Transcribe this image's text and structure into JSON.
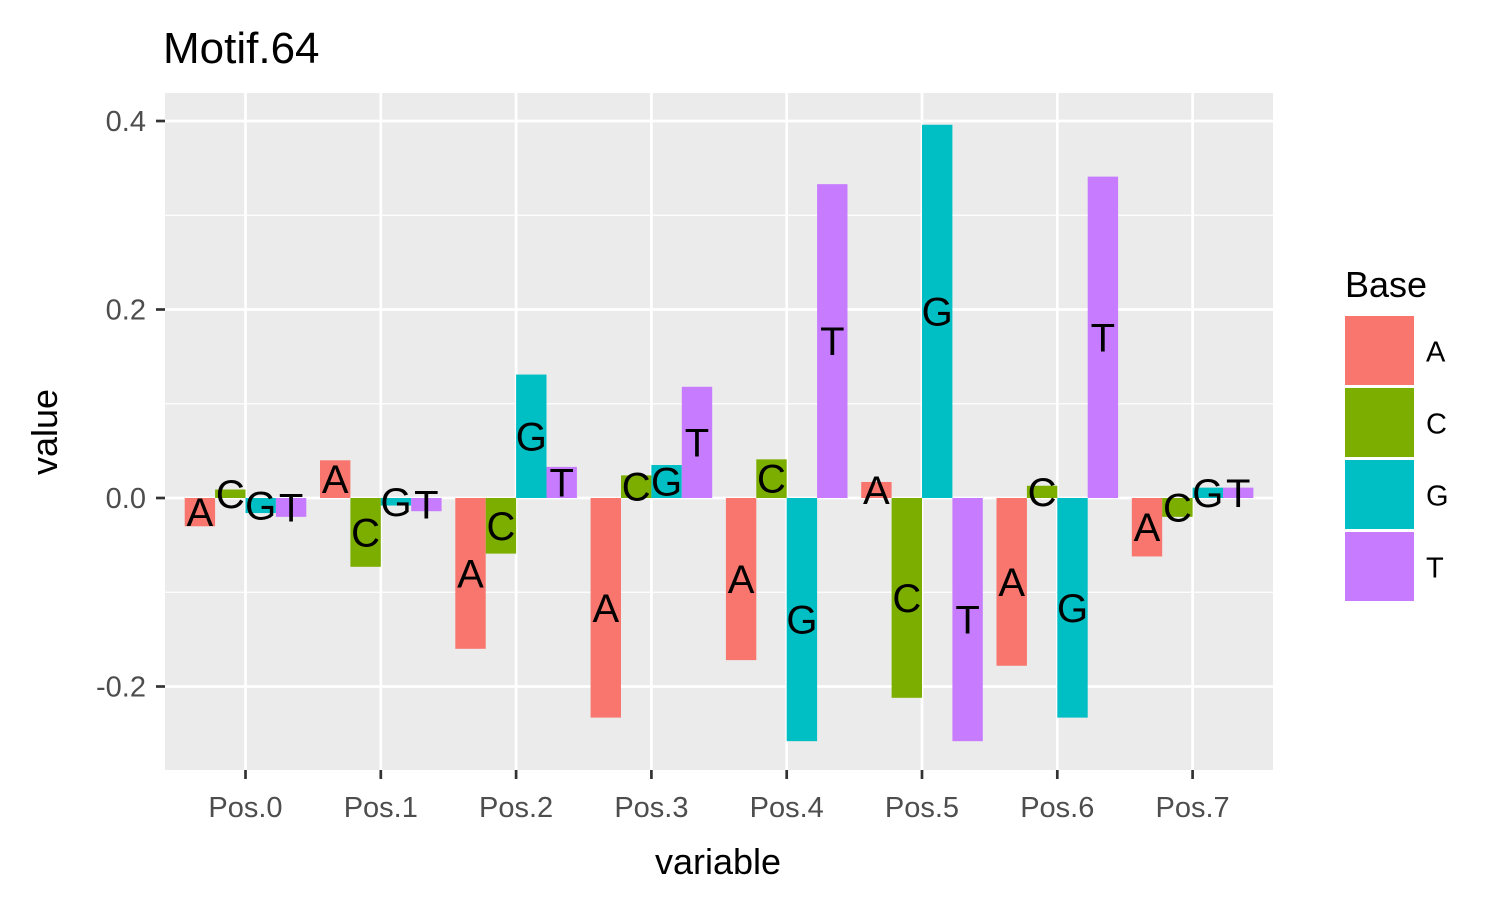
{
  "chart_data": {
    "type": "bar",
    "title": "Motif.64",
    "xlabel": "variable",
    "ylabel": "value",
    "categories": [
      "Pos.0",
      "Pos.1",
      "Pos.2",
      "Pos.3",
      "Pos.4",
      "Pos.5",
      "Pos.6",
      "Pos.7"
    ],
    "ylim": [
      -0.29,
      0.4
    ],
    "yticks": [
      {
        "value": -0.2,
        "label": "-0.2"
      },
      {
        "value": 0.0,
        "label": "0.0"
      },
      {
        "value": 0.2,
        "label": "0.2"
      },
      {
        "value": 0.4,
        "label": "0.4"
      }
    ],
    "grid": true,
    "legend": {
      "title": "Base",
      "position": "right"
    },
    "series": [
      {
        "name": "A",
        "color": "#F8766D",
        "values": [
          -0.03,
          0.04,
          -0.16,
          -0.233,
          -0.172,
          0.017,
          -0.178,
          -0.062
        ]
      },
      {
        "name": "C",
        "color": "#7CAE00",
        "values": [
          0.009,
          -0.073,
          -0.059,
          0.024,
          0.041,
          -0.212,
          0.013,
          -0.02
        ]
      },
      {
        "name": "G",
        "color": "#00BFC4",
        "values": [
          -0.016,
          -0.008,
          0.131,
          0.035,
          -0.258,
          0.396,
          -0.233,
          0.011
        ]
      },
      {
        "name": "T",
        "color": "#C77CFF",
        "values": [
          -0.02,
          -0.014,
          0.033,
          0.118,
          0.333,
          -0.258,
          0.341,
          0.011
        ]
      }
    ]
  }
}
